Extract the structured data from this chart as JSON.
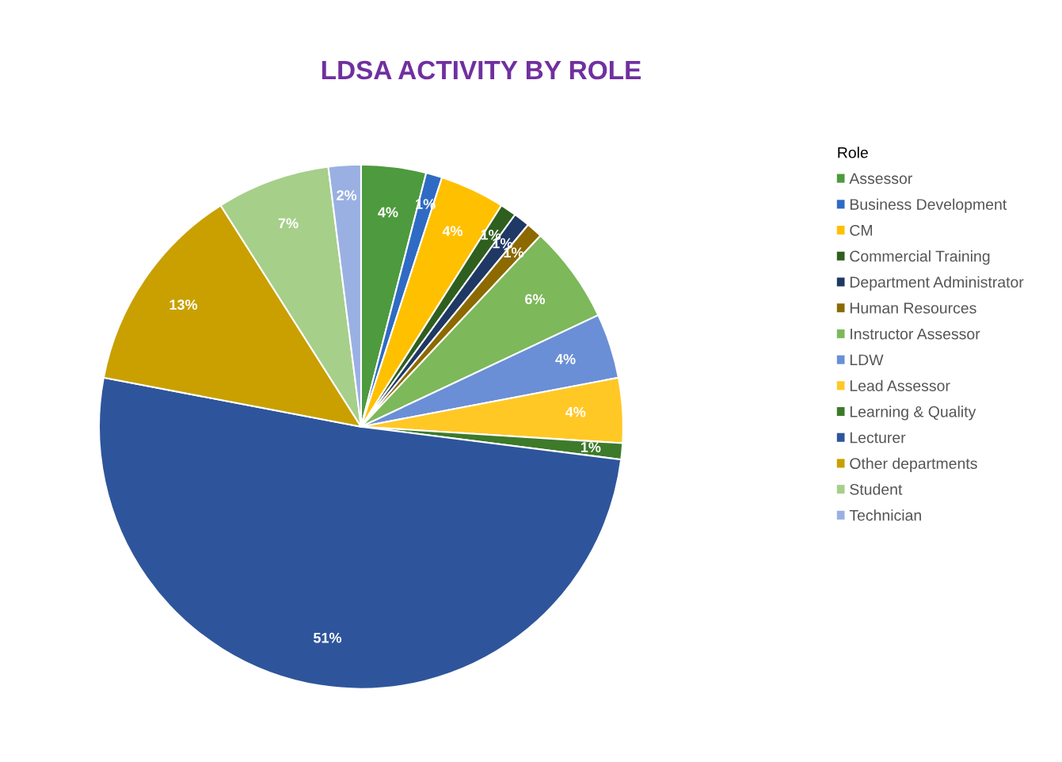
{
  "chart_data": {
    "type": "pie",
    "title": "LDSA ACTIVITY BY ROLE",
    "legend_title": "Role",
    "legend": "right",
    "categories": [
      "Assessor",
      "Business Development",
      "CM",
      "Commercial Training",
      "Department Administrator",
      "Human Resources",
      "Instructor Assessor",
      "LDW",
      "Lead Assessor",
      "Learning & Quality",
      "Lecturer",
      "Other departments",
      "Student",
      "Technician"
    ],
    "values": [
      4,
      1,
      4,
      1,
      1,
      1,
      6,
      4,
      4,
      1,
      51,
      13,
      7,
      2
    ],
    "value_labels": [
      "4%",
      "1%",
      "4%",
      "1%",
      "1%",
      "1%",
      "6%",
      "4%",
      "4%",
      "1%",
      "51%",
      "13%",
      "7%",
      "2%"
    ],
    "colors": [
      "#4e9a3e",
      "#2f6bc4",
      "#ffc000",
      "#2f5f1e",
      "#1f3864",
      "#8c6a00",
      "#7db85a",
      "#6a8fd6",
      "#ffc825",
      "#3d7a2a",
      "#2e559b",
      "#c9a000",
      "#a6cf8a",
      "#9ab0e3"
    ]
  }
}
